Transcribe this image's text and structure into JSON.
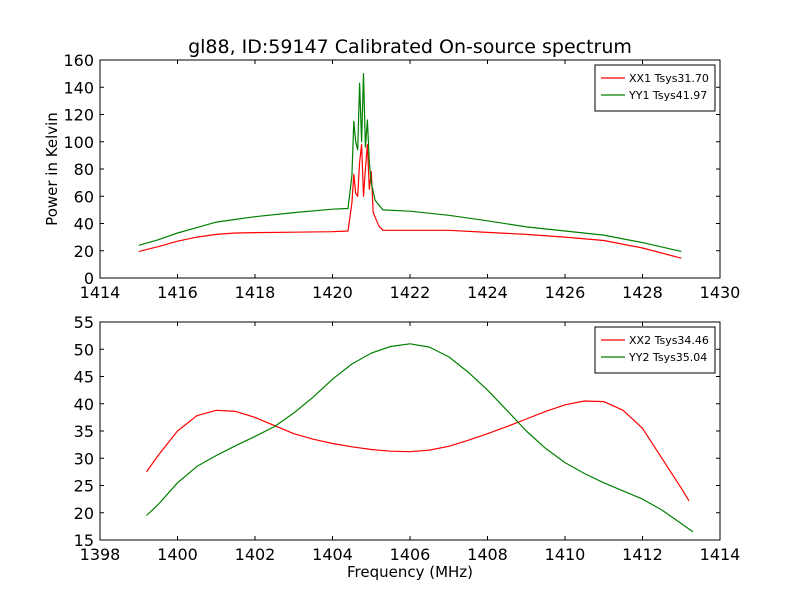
{
  "figure": {
    "title": "gl88, ID:59147 Calibrated On-source spectrum"
  },
  "chart_data": [
    {
      "type": "line",
      "title": "gl88, ID:59147 Calibrated On-source spectrum",
      "xlabel": "",
      "ylabel": "Power in Kelvin",
      "xlim": [
        1414,
        1430
      ],
      "ylim": [
        0,
        160
      ],
      "xticks": [
        1414,
        1416,
        1418,
        1420,
        1422,
        1424,
        1426,
        1428,
        1430
      ],
      "yticks": [
        0,
        20,
        40,
        60,
        80,
        100,
        120,
        140,
        160
      ],
      "grid": false,
      "legend_position": "top-right",
      "series": [
        {
          "name": "XX1 Tsys31.70",
          "color": "#ff0000",
          "points": [
            [
              1415.0,
              19.5
            ],
            [
              1415.5,
              23
            ],
            [
              1416.0,
              27
            ],
            [
              1416.5,
              30
            ],
            [
              1417.0,
              32
            ],
            [
              1417.5,
              33
            ],
            [
              1418.0,
              33.3
            ],
            [
              1419.0,
              33.6
            ],
            [
              1420.0,
              34
            ],
            [
              1420.4,
              34.5
            ],
            [
              1420.5,
              55
            ],
            [
              1420.55,
              76
            ],
            [
              1420.6,
              62
            ],
            [
              1420.65,
              60
            ],
            [
              1420.7,
              85
            ],
            [
              1420.75,
              98
            ],
            [
              1420.8,
              60
            ],
            [
              1420.85,
              80
            ],
            [
              1420.9,
              98
            ],
            [
              1420.95,
              65
            ],
            [
              1421.0,
              78
            ],
            [
              1421.05,
              48
            ],
            [
              1421.2,
              38
            ],
            [
              1421.3,
              35
            ],
            [
              1422.0,
              35
            ],
            [
              1423.0,
              35
            ],
            [
              1424.0,
              33.5
            ],
            [
              1425.0,
              32
            ],
            [
              1426.0,
              30
            ],
            [
              1427.0,
              27.5
            ],
            [
              1428.0,
              22
            ],
            [
              1429.0,
              14.5
            ]
          ]
        },
        {
          "name": "YY1 Tsys41.97",
          "color": "#008000",
          "points": [
            [
              1415.0,
              24
            ],
            [
              1415.5,
              28
            ],
            [
              1416.0,
              33
            ],
            [
              1416.5,
              37
            ],
            [
              1417.0,
              41
            ],
            [
              1417.5,
              43
            ],
            [
              1418.0,
              45
            ],
            [
              1419.0,
              48
            ],
            [
              1420.0,
              50.5
            ],
            [
              1420.4,
              51
            ],
            [
              1420.5,
              75
            ],
            [
              1420.55,
              115
            ],
            [
              1420.6,
              100
            ],
            [
              1420.65,
              94
            ],
            [
              1420.7,
              143
            ],
            [
              1420.75,
              100
            ],
            [
              1420.8,
              150
            ],
            [
              1420.85,
              96
            ],
            [
              1420.9,
              116
            ],
            [
              1420.95,
              85
            ],
            [
              1421.0,
              70
            ],
            [
              1421.1,
              57
            ],
            [
              1421.3,
              50
            ],
            [
              1422.0,
              49
            ],
            [
              1423.0,
              46
            ],
            [
              1424.0,
              42
            ],
            [
              1425.0,
              37.5
            ],
            [
              1426.0,
              34.5
            ],
            [
              1427.0,
              31.5
            ],
            [
              1428.0,
              26
            ],
            [
              1429.0,
              19.5
            ]
          ]
        }
      ]
    },
    {
      "type": "line",
      "title": "",
      "xlabel": "Frequency (MHz)",
      "ylabel": "",
      "xlim": [
        1398,
        1414
      ],
      "ylim": [
        15,
        55
      ],
      "xticks": [
        1398,
        1400,
        1402,
        1404,
        1406,
        1408,
        1410,
        1412,
        1414
      ],
      "yticks": [
        15,
        20,
        25,
        30,
        35,
        40,
        45,
        50,
        55
      ],
      "grid": false,
      "legend_position": "top-right",
      "series": [
        {
          "name": "XX2 Tsys34.46",
          "color": "#ff0000",
          "points": [
            [
              1399.2,
              27.5
            ],
            [
              1399.5,
              30.5
            ],
            [
              1400.0,
              35
            ],
            [
              1400.5,
              37.8
            ],
            [
              1401.0,
              38.8
            ],
            [
              1401.5,
              38.6
            ],
            [
              1402.0,
              37.5
            ],
            [
              1402.5,
              36
            ],
            [
              1403.0,
              34.5
            ],
            [
              1403.5,
              33.5
            ],
            [
              1404.0,
              32.7
            ],
            [
              1404.5,
              32.1
            ],
            [
              1405.0,
              31.6
            ],
            [
              1405.5,
              31.3
            ],
            [
              1406.0,
              31.2
            ],
            [
              1406.5,
              31.5
            ],
            [
              1407.0,
              32.2
            ],
            [
              1407.5,
              33.3
            ],
            [
              1408.0,
              34.5
            ],
            [
              1408.5,
              35.8
            ],
            [
              1409.0,
              37.2
            ],
            [
              1409.5,
              38.6
            ],
            [
              1410.0,
              39.8
            ],
            [
              1410.5,
              40.5
            ],
            [
              1411.0,
              40.4
            ],
            [
              1411.5,
              38.8
            ],
            [
              1412.0,
              35.5
            ],
            [
              1412.5,
              30
            ],
            [
              1413.0,
              24.5
            ],
            [
              1413.2,
              22.2
            ]
          ]
        },
        {
          "name": "YY2 Tsys35.04",
          "color": "#008000",
          "points": [
            [
              1399.2,
              19.5
            ],
            [
              1399.5,
              21.5
            ],
            [
              1400.0,
              25.5
            ],
            [
              1400.5,
              28.5
            ],
            [
              1401.0,
              30.5
            ],
            [
              1401.5,
              32.3
            ],
            [
              1402.0,
              34
            ],
            [
              1402.5,
              35.8
            ],
            [
              1403.0,
              38.3
            ],
            [
              1403.5,
              41.2
            ],
            [
              1404.0,
              44.5
            ],
            [
              1404.5,
              47.3
            ],
            [
              1405.0,
              49.3
            ],
            [
              1405.5,
              50.5
            ],
            [
              1406.0,
              51
            ],
            [
              1406.5,
              50.4
            ],
            [
              1407.0,
              48.6
            ],
            [
              1407.5,
              45.8
            ],
            [
              1408.0,
              42.5
            ],
            [
              1408.5,
              38.8
            ],
            [
              1409.0,
              35
            ],
            [
              1409.5,
              31.8
            ],
            [
              1410.0,
              29.2
            ],
            [
              1410.5,
              27.2
            ],
            [
              1411.0,
              25.5
            ],
            [
              1411.5,
              24
            ],
            [
              1412.0,
              22.5
            ],
            [
              1412.5,
              20.5
            ],
            [
              1413.0,
              18
            ],
            [
              1413.3,
              16.5
            ]
          ]
        }
      ]
    }
  ]
}
